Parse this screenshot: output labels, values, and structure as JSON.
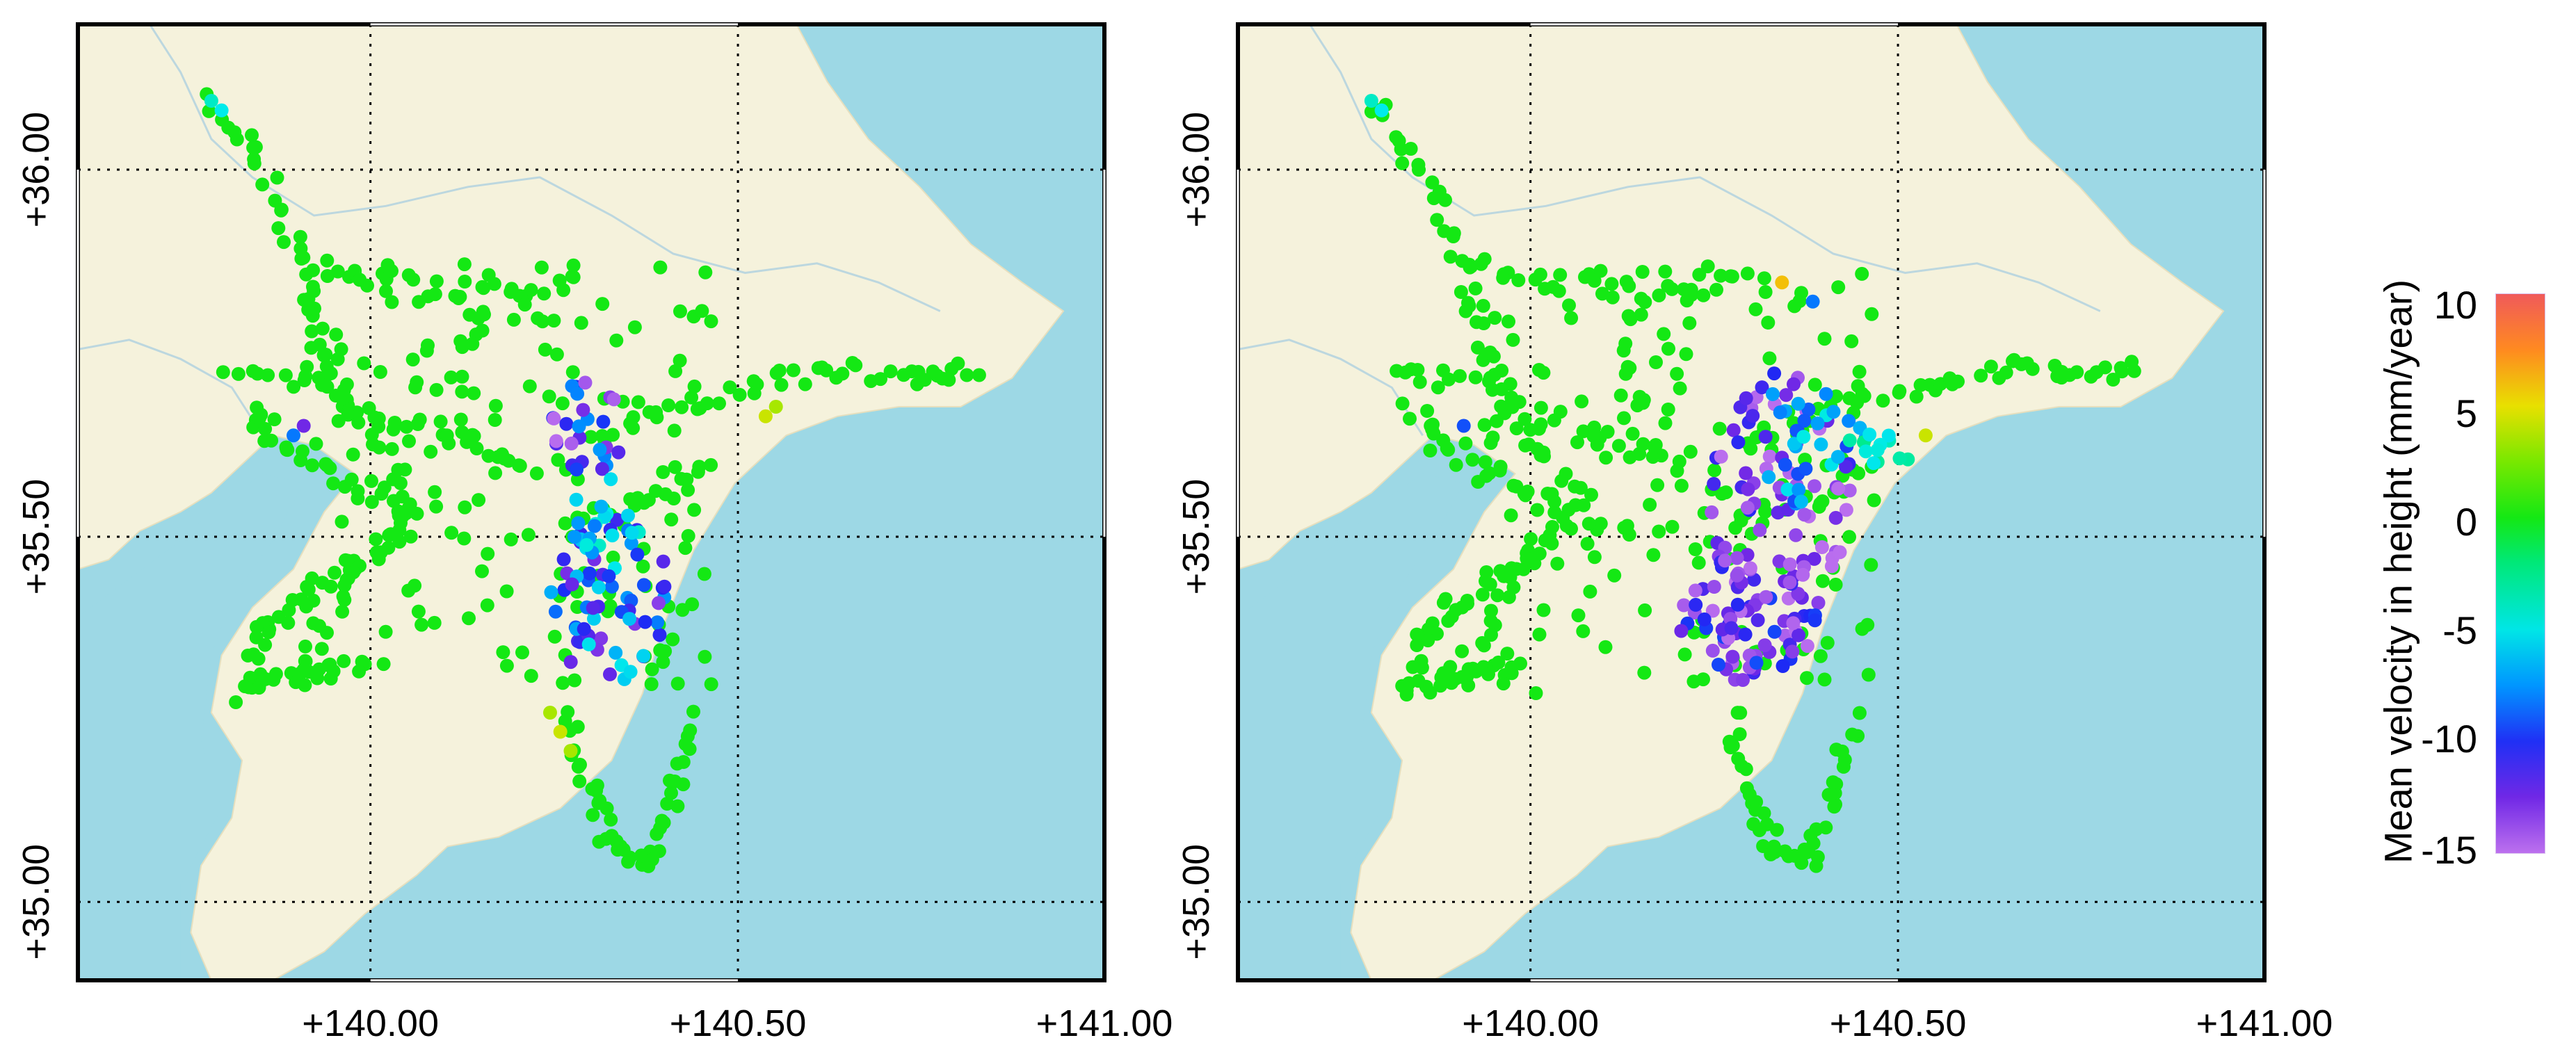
{
  "maps": [
    {
      "name": "left-map",
      "x_ticks": [
        "+140.00",
        "+140.50",
        "+141.00"
      ],
      "y_ticks": [
        "+36.00",
        "+35.50",
        "+35.00"
      ]
    },
    {
      "name": "right-map",
      "x_ticks": [
        "+140.00",
        "+140.50",
        "+141.00"
      ],
      "y_ticks": [
        "+36.00",
        "+35.50",
        "+35.00"
      ]
    }
  ],
  "colorbar": {
    "title": "Mean velocity in height (mm/year)",
    "ticks": [
      "10",
      "5",
      "0",
      "-5",
      "-10",
      "-15"
    ],
    "range": [
      -15,
      10
    ]
  },
  "colors": {
    "sea": "#9dd8e5",
    "land": "#f5f2dc",
    "border": "#bcd7df",
    "frame": "#000000",
    "grid": "#000000"
  }
}
